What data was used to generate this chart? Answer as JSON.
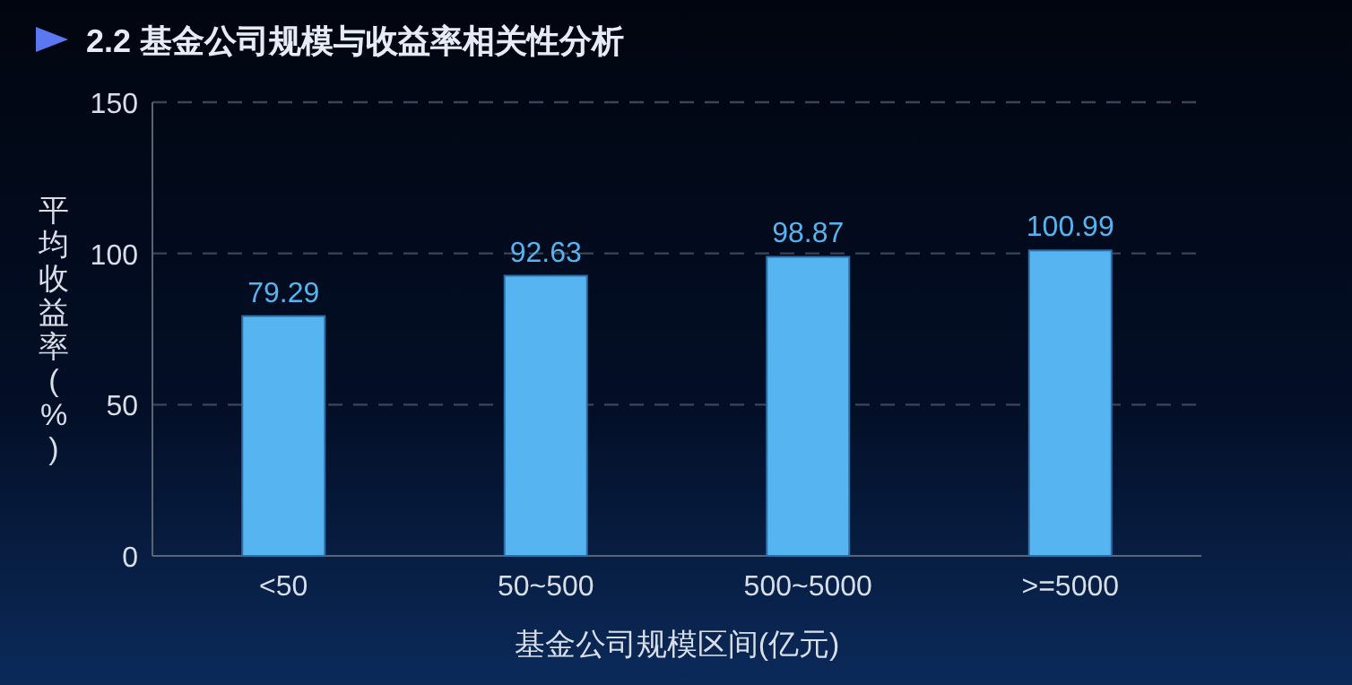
{
  "chart_data": {
    "type": "bar",
    "title": "2.2 基金公司规模与收益率相关性分析",
    "xlabel": "基金公司规模区间(亿元)",
    "ylabel": "平均收益率(%)",
    "categories": [
      "<50",
      "50~500",
      "500~5000",
      ">=5000"
    ],
    "values": [
      79.29,
      92.63,
      98.87,
      100.99
    ],
    "color": "#56b4f0",
    "ylim": [
      0,
      150
    ],
    "yticks": [
      0,
      50,
      100,
      150
    ],
    "grid": "y",
    "data_labels": true
  }
}
